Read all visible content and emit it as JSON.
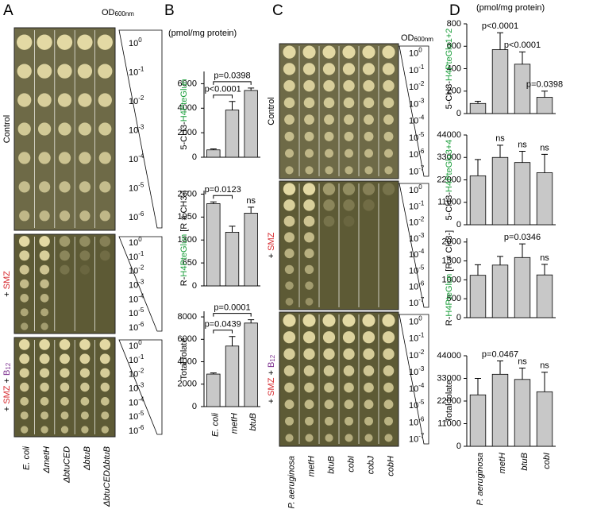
{
  "panel_letters": [
    "A",
    "B",
    "C",
    "D"
  ],
  "unit": "(pmol/mg protein)",
  "od_label": {
    "text": "OD",
    "sub": "600nm"
  },
  "conditions": {
    "control": "Control",
    "smz": [
      "+ ",
      "SMZ"
    ],
    "smz_b12": [
      "+ ",
      "SMZ",
      " + ",
      "B",
      "12"
    ]
  },
  "dilution_base": "10",
  "dilutions_A": [
    "0",
    "-1",
    "-2",
    "-3",
    "-4",
    "-5",
    "-6"
  ],
  "dilutions_C": [
    "0",
    "-1",
    "-2",
    "-3",
    "-4",
    "-5",
    "-6",
    "-7"
  ],
  "strains_A": [
    "E. coli",
    "ΔmetH",
    "ΔbtuCED",
    "ΔbtuB",
    "ΔbtuCEDΔbtuB"
  ],
  "strains_C": [
    "P. aeruginosa",
    "metH",
    "btuB",
    "cobI",
    "cobJ",
    "cobH"
  ],
  "chart_data": [
    {
      "type": "bar",
      "ylabel": [
        "5-CH3-",
        "H4PteGlun"
      ],
      "ylabel_colors": [
        "#000000",
        "#1a9e3a"
      ],
      "values": [
        600,
        3850,
        5450
      ],
      "errors": [
        80,
        700,
        200
      ],
      "color": "#c8c8c8",
      "ylim": [
        0,
        7000
      ],
      "yticks": [
        0,
        2000,
        4000,
        6000
      ],
      "annotations": [
        {
          "text": "p<0.0001",
          "from": 0,
          "to": 1
        },
        {
          "text": "p=0.0398",
          "from": 0,
          "to": 2
        }
      ]
    },
    {
      "type": "bar",
      "ylabel": [
        "R-",
        "H4PteGlun",
        " [R ≠ CH3-]"
      ],
      "ylabel_colors": [
        "#000000",
        "#1a9e3a",
        "#000000"
      ],
      "values": [
        2330,
        1520,
        2060
      ],
      "errors": [
        50,
        170,
        170
      ],
      "color": "#c8c8c8",
      "ylim": [
        0,
        2700
      ],
      "yticks": [
        0,
        650,
        1300,
        1950,
        2600
      ],
      "annotations": [
        {
          "text": "p=0.0123",
          "from": 0,
          "to": 1
        },
        {
          "text": "ns",
          "at": 2
        }
      ]
    },
    {
      "type": "bar",
      "ylabel": [
        "Total folate"
      ],
      "ylabel_colors": [
        "#000000"
      ],
      "categories": [
        "E. coli",
        "metH",
        "btuB"
      ],
      "values": [
        2900,
        5400,
        7450
      ],
      "errors": [
        100,
        850,
        300
      ],
      "color": "#c8c8c8",
      "ylim": [
        0,
        8500
      ],
      "yticks": [
        0,
        2000,
        4000,
        6000,
        8000
      ],
      "annotations": [
        {
          "text": "p=0.0439",
          "from": 0,
          "to": 1
        },
        {
          "text": "p=0.0001",
          "from": 0,
          "to": 2
        }
      ]
    },
    {
      "type": "bar",
      "ylabel": [
        "5-CH3-",
        "H4PteGlu1+2"
      ],
      "ylabel_colors": [
        "#000000",
        "#1a9e3a"
      ],
      "values": [
        90,
        570,
        440,
        145
      ],
      "errors": [
        20,
        150,
        110,
        55
      ],
      "color": "#c8c8c8",
      "ylim": [
        0,
        800
      ],
      "yticks": [
        0,
        200,
        400,
        600,
        800
      ],
      "annotations": [
        {
          "text": "p<0.0001",
          "at": 1
        },
        {
          "text": "p<0.0001",
          "at": 2
        },
        {
          "text": "p=0.0398",
          "at": 3
        }
      ]
    },
    {
      "type": "bar",
      "ylabel": [
        "5-CH3-",
        "H4PteGlu3+4"
      ],
      "ylabel_colors": [
        "#000000",
        "#1a9e3a"
      ],
      "values": [
        24000,
        33000,
        30500,
        25500
      ],
      "errors": [
        8000,
        6000,
        5500,
        9000
      ],
      "color": "#c8c8c8",
      "ylim": [
        0,
        44000
      ],
      "yticks": [
        0,
        11000,
        22000,
        33000,
        44000
      ],
      "annotations": [
        {
          "text": "ns",
          "at": 1
        },
        {
          "text": "ns",
          "at": 2
        },
        {
          "text": "ns",
          "at": 3
        }
      ]
    },
    {
      "type": "bar",
      "ylabel": [
        "R-",
        "H4PteGlun",
        " [R ≠ CH3-]"
      ],
      "ylabel_colors": [
        "#000000",
        "#1a9e3a",
        "#000000"
      ],
      "values": [
        1120,
        1390,
        1590,
        1130
      ],
      "errors": [
        280,
        230,
        360,
        280
      ],
      "color": "#c8c8c8",
      "ylim": [
        0,
        2100
      ],
      "yticks": [
        0,
        500,
        1000,
        1500,
        2000
      ],
      "annotations": [
        {
          "text": "p=0.0346",
          "at": 2
        },
        {
          "text": "ns",
          "at": 3
        }
      ]
    },
    {
      "type": "bar",
      "ylabel": [
        "Total folate"
      ],
      "ylabel_colors": [
        "#000000"
      ],
      "categories": [
        "P. aeruginosa",
        "metH",
        "btuB",
        "cobI"
      ],
      "values": [
        25000,
        35000,
        32500,
        26500
      ],
      "errors": [
        8000,
        6500,
        5500,
        9500
      ],
      "color": "#c8c8c8",
      "ylim": [
        0,
        44000
      ],
      "yticks": [
        0,
        11000,
        22000,
        33000,
        44000
      ],
      "annotations": [
        {
          "text": "p=0.0467",
          "at": 1
        },
        {
          "text": "ns",
          "at": 2
        },
        {
          "text": "ns",
          "at": 3
        }
      ]
    }
  ]
}
